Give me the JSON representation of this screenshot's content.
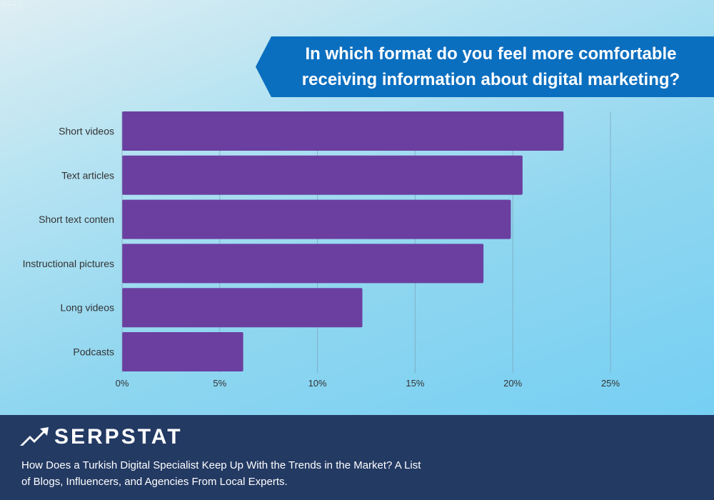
{
  "chart_data": {
    "type": "bar",
    "orientation": "horizontal",
    "title": "In which format do you feel more comfortable receiving information about digital marketing?",
    "categories": [
      "Short videos",
      "Text articles",
      "Short text conten",
      "Instructional pictures",
      "Long videos",
      "Podcasts"
    ],
    "values": [
      22.6,
      20.5,
      19.9,
      18.5,
      12.3,
      6.2
    ],
    "xlim": [
      0,
      25
    ],
    "ticks": [
      0,
      5,
      10,
      15,
      20,
      25
    ],
    "tick_labels": [
      "0%",
      "5%",
      "10%",
      "15%",
      "20%",
      "25%"
    ],
    "grid": true,
    "bar_color": "#6b3fa0"
  },
  "footer": {
    "brand": "SERPSTAT",
    "caption": "How Does a Turkish Digital Specialist Keep Up With the Trends in the Market? A List of Blogs, Influencers, and Agencies From Local Experts."
  },
  "colors": {
    "banner": "#0b6fc0",
    "footer_bg": "#233a63",
    "bar": "#6b3fa0"
  }
}
